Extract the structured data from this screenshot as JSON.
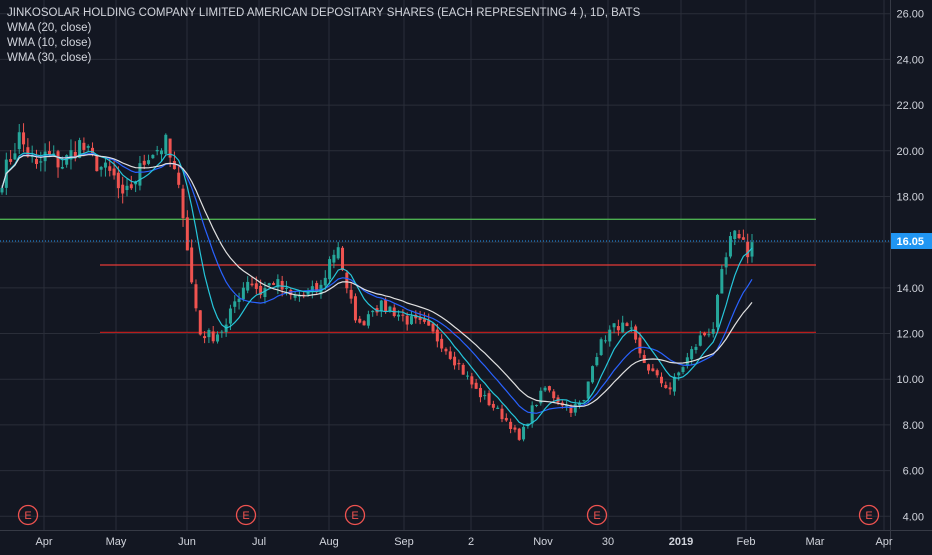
{
  "chart_data": {
    "type": "candlestick",
    "title": "JINKOSOLAR HOLDING COMPANY LIMITED AMERICAN DEPOSITARY SHARES (EACH REPRESENTING 4 ), 1D, BATS",
    "indicators": [
      "WMA (20, close)",
      "WMA (10, close)",
      "WMA (30, close)"
    ],
    "ylim": [
      3.4,
      26.6
    ],
    "y_ticks": [
      "4.00",
      "6.00",
      "8.00",
      "10.00",
      "12.00",
      "14.00",
      "16.00",
      "18.00",
      "20.00",
      "22.00",
      "24.00",
      "26.00"
    ],
    "x_ticks": [
      "Apr",
      "May",
      "Jun",
      "Jul",
      "Aug",
      "Sep",
      "2",
      "Nov",
      "30",
      "2019",
      "Feb",
      "Mar",
      "Apr"
    ],
    "last_price": "16.05",
    "horizontal_lines": [
      {
        "price": 17.0,
        "color": "#4caf50"
      },
      {
        "price": 15.0,
        "color": "#e53935"
      },
      {
        "price": 12.05,
        "color": "#b71c1c"
      }
    ],
    "earnings_marker_label": "E",
    "earnings_markers": 5,
    "colors": {
      "up": "#26a69a",
      "down": "#ef5350",
      "wma20": "#2962ff",
      "wma10": "#26c6da",
      "wma30": "#e0e0e0",
      "grid": "#2a2e39",
      "axis_text": "#d1d4dc",
      "price_label_bg": "#2196f3"
    },
    "close_path": [
      [
        0,
        18.8
      ],
      [
        4,
        20.6
      ],
      [
        8,
        19.2
      ],
      [
        10,
        19.8
      ],
      [
        14,
        19.4
      ],
      [
        18,
        20.3
      ],
      [
        21,
        19.6
      ],
      [
        26,
        18.8
      ],
      [
        28,
        17.8
      ],
      [
        31,
        18.8
      ],
      [
        34,
        19.9
      ],
      [
        38,
        20.3
      ],
      [
        40,
        19.0
      ],
      [
        42,
        17.4
      ],
      [
        44,
        14.2
      ],
      [
        46,
        12.0
      ],
      [
        49,
        11.9
      ],
      [
        52,
        12.3
      ],
      [
        54,
        13.4
      ],
      [
        57,
        14.4
      ],
      [
        60,
        13.8
      ],
      [
        63,
        14.3
      ],
      [
        67,
        13.6
      ],
      [
        71,
        13.7
      ],
      [
        74,
        14.0
      ],
      [
        76,
        15.2
      ],
      [
        78,
        15.9
      ],
      [
        80,
        13.8
      ],
      [
        83,
        12.3
      ],
      [
        86,
        13.2
      ],
      [
        90,
        13.1
      ],
      [
        94,
        12.6
      ],
      [
        98,
        12.3
      ],
      [
        102,
        11.6
      ],
      [
        106,
        10.6
      ],
      [
        110,
        9.5
      ],
      [
        114,
        8.8
      ],
      [
        118,
        8.0
      ],
      [
        120,
        7.3
      ],
      [
        123,
        8.7
      ],
      [
        126,
        9.6
      ],
      [
        129,
        9.1
      ],
      [
        132,
        8.7
      ],
      [
        135,
        9.0
      ],
      [
        137,
        10.8
      ],
      [
        140,
        11.9
      ],
      [
        143,
        12.4
      ],
      [
        146,
        12.0
      ],
      [
        148,
        11.0
      ],
      [
        152,
        10.0
      ],
      [
        155,
        9.6
      ],
      [
        158,
        10.6
      ],
      [
        162,
        11.8
      ],
      [
        165,
        12.3
      ],
      [
        167,
        14.5
      ],
      [
        169,
        16.0
      ],
      [
        171,
        16.4
      ],
      [
        173,
        15.6
      ],
      [
        174,
        16.0
      ]
    ]
  }
}
